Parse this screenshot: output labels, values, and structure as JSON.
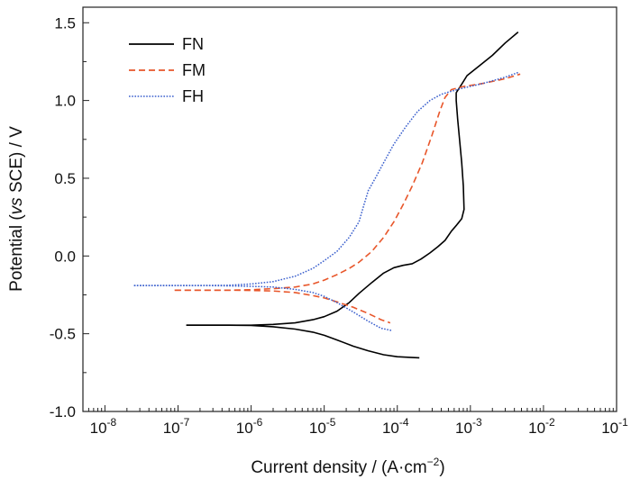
{
  "chart_data": {
    "type": "line",
    "xlabel": "Current density / (A·cm",
    "xlabel_sup": "−2",
    "xlabel_tail": ")",
    "ylabel_parts": [
      "Potential (",
      "vs",
      " SCE) / V"
    ],
    "x_scale": "log",
    "xlim": [
      5e-09,
      0.1
    ],
    "ylim": [
      -1.0,
      1.6
    ],
    "x_ticks": [
      {
        "value": 1e-08,
        "base": "10",
        "exp": "-8"
      },
      {
        "value": 1e-07,
        "base": "10",
        "exp": "-7"
      },
      {
        "value": 1e-06,
        "base": "10",
        "exp": "-6"
      },
      {
        "value": 1e-05,
        "base": "10",
        "exp": "-5"
      },
      {
        "value": 0.0001,
        "base": "10",
        "exp": "-4"
      },
      {
        "value": 0.001,
        "base": "10",
        "exp": "-3"
      },
      {
        "value": 0.01,
        "base": "10",
        "exp": "-2"
      },
      {
        "value": 0.1,
        "base": "10",
        "exp": "-1"
      }
    ],
    "y_ticks": [
      {
        "value": -1.0,
        "label": "-1.0"
      },
      {
        "value": -0.5,
        "label": "-0.5"
      },
      {
        "value": 0.0,
        "label": "0.0"
      },
      {
        "value": 0.5,
        "label": "0.5"
      },
      {
        "value": 1.0,
        "label": "1.0"
      },
      {
        "value": 1.5,
        "label": "1.5"
      }
    ],
    "grid": false,
    "legend_position": "top-left",
    "series": [
      {
        "name": "FN",
        "color": "#000000",
        "style": "solid",
        "points": [
          [
            1.3e-07,
            -0.445
          ],
          [
            5e-07,
            -0.445
          ],
          [
            1e-06,
            -0.445
          ],
          [
            2e-06,
            -0.44
          ],
          [
            4e-06,
            -0.43
          ],
          [
            7e-06,
            -0.41
          ],
          [
            1e-05,
            -0.39
          ],
          [
            1.5e-05,
            -0.355
          ],
          [
            2.2e-05,
            -0.3
          ],
          [
            3e-05,
            -0.24
          ],
          [
            4.5e-05,
            -0.17
          ],
          [
            6.5e-05,
            -0.11
          ],
          [
            9e-05,
            -0.075
          ],
          [
            0.00012,
            -0.06
          ],
          [
            0.00016,
            -0.05
          ],
          [
            0.00021,
            -0.02
          ],
          [
            0.00028,
            0.02
          ],
          [
            0.00036,
            0.06
          ],
          [
            0.00045,
            0.1
          ],
          [
            0.00055,
            0.16
          ],
          [
            0.00065,
            0.2
          ],
          [
            0.00076,
            0.24
          ],
          [
            0.00082,
            0.3
          ],
          [
            0.0008,
            0.45
          ],
          [
            0.00076,
            0.6
          ],
          [
            0.00071,
            0.75
          ],
          [
            0.00067,
            0.88
          ],
          [
            0.00064,
            1.0
          ],
          [
            0.00064,
            1.05
          ],
          [
            0.00075,
            1.1
          ],
          [
            0.0009,
            1.16
          ],
          [
            0.0013,
            1.22
          ],
          [
            0.002,
            1.29
          ],
          [
            0.003,
            1.37
          ],
          [
            0.0045,
            1.44
          ]
        ],
        "cathodic_points": [
          [
            1.3e-07,
            -0.445
          ],
          [
            5e-07,
            -0.445
          ],
          [
            1e-06,
            -0.447
          ],
          [
            2e-06,
            -0.455
          ],
          [
            4e-06,
            -0.47
          ],
          [
            7e-06,
            -0.49
          ],
          [
            1e-05,
            -0.51
          ],
          [
            1.5e-05,
            -0.54
          ],
          [
            2.5e-05,
            -0.58
          ],
          [
            4e-05,
            -0.61
          ],
          [
            6.5e-05,
            -0.635
          ],
          [
            0.0001,
            -0.648
          ],
          [
            0.00015,
            -0.652
          ],
          [
            0.0002,
            -0.655
          ]
        ]
      },
      {
        "name": "FM",
        "color": "#e8562a",
        "style": "dashed",
        "points": [
          [
            9e-08,
            -0.22
          ],
          [
            5e-07,
            -0.22
          ],
          [
            1e-06,
            -0.217
          ],
          [
            2e-06,
            -0.21
          ],
          [
            4e-06,
            -0.2
          ],
          [
            7e-06,
            -0.18
          ],
          [
            1e-05,
            -0.155
          ],
          [
            1.5e-05,
            -0.12
          ],
          [
            2.2e-05,
            -0.08
          ],
          [
            3e-05,
            -0.04
          ],
          [
            4.5e-05,
            0.03
          ],
          [
            6.5e-05,
            0.12
          ],
          [
            9e-05,
            0.22
          ],
          [
            0.00012,
            0.33
          ],
          [
            0.00016,
            0.45
          ],
          [
            0.00022,
            0.6
          ],
          [
            0.0003,
            0.78
          ],
          [
            0.00038,
            0.93
          ],
          [
            0.00045,
            1.02
          ],
          [
            0.00055,
            1.07
          ],
          [
            0.0008,
            1.09
          ],
          [
            0.0015,
            1.11
          ],
          [
            0.003,
            1.14
          ],
          [
            0.0048,
            1.17
          ]
        ],
        "cathodic_points": [
          [
            9e-08,
            -0.22
          ],
          [
            5e-07,
            -0.22
          ],
          [
            1e-06,
            -0.222
          ],
          [
            2e-06,
            -0.225
          ],
          [
            4e-06,
            -0.235
          ],
          [
            7e-06,
            -0.255
          ],
          [
            1e-05,
            -0.27
          ],
          [
            1.5e-05,
            -0.295
          ],
          [
            2.5e-05,
            -0.33
          ],
          [
            4e-05,
            -0.37
          ],
          [
            6e-05,
            -0.41
          ],
          [
            8e-05,
            -0.43
          ]
        ]
      },
      {
        "name": "FH",
        "color": "#3a5fcd",
        "style": "dotted",
        "points": [
          [
            2.5e-08,
            -0.19
          ],
          [
            2e-07,
            -0.19
          ],
          [
            5e-07,
            -0.188
          ],
          [
            1e-06,
            -0.18
          ],
          [
            2e-06,
            -0.165
          ],
          [
            4e-06,
            -0.13
          ],
          [
            7e-06,
            -0.08
          ],
          [
            1e-05,
            -0.03
          ],
          [
            1.5e-05,
            0.03
          ],
          [
            2.2e-05,
            0.12
          ],
          [
            3e-05,
            0.22
          ],
          [
            3.5e-05,
            0.33
          ],
          [
            4e-05,
            0.42
          ],
          [
            5e-05,
            0.5
          ],
          [
            6.5e-05,
            0.6
          ],
          [
            9e-05,
            0.72
          ],
          [
            0.00013,
            0.83
          ],
          [
            0.00019,
            0.93
          ],
          [
            0.00028,
            1.0
          ],
          [
            0.0004,
            1.04
          ],
          [
            0.00055,
            1.06
          ],
          [
            0.0008,
            1.08
          ],
          [
            0.0015,
            1.11
          ],
          [
            0.003,
            1.15
          ],
          [
            0.0045,
            1.18
          ]
        ],
        "cathodic_points": [
          [
            2.5e-08,
            -0.19
          ],
          [
            2e-07,
            -0.19
          ],
          [
            5e-07,
            -0.192
          ],
          [
            1e-06,
            -0.195
          ],
          [
            2e-06,
            -0.2
          ],
          [
            4e-06,
            -0.215
          ],
          [
            7e-06,
            -0.235
          ],
          [
            1e-05,
            -0.26
          ],
          [
            1.5e-05,
            -0.3
          ],
          [
            2.5e-05,
            -0.36
          ],
          [
            4e-05,
            -0.42
          ],
          [
            6e-05,
            -0.465
          ],
          [
            8.5e-05,
            -0.48
          ]
        ]
      }
    ]
  }
}
